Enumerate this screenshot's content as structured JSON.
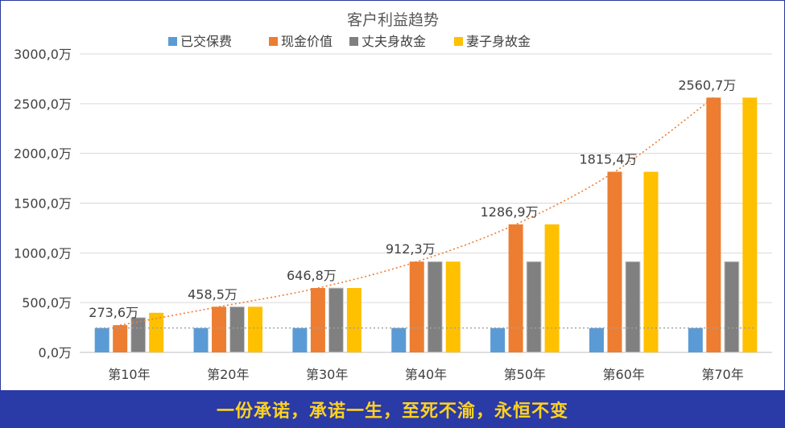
{
  "chart_data": {
    "type": "bar",
    "title": "客户利益趋势",
    "categories": [
      "第10年",
      "第20年",
      "第30年",
      "第40年",
      "第50年",
      "第60年",
      "第70年"
    ],
    "series": [
      {
        "name": "已交保费",
        "color": "#5b9bd5",
        "values": [
          245,
          245,
          245,
          245,
          245,
          245,
          245
        ]
      },
      {
        "name": "现金价值",
        "color": "#ed7d31",
        "values": [
          273.6,
          458.5,
          646.8,
          912.3,
          1286.9,
          1815.4,
          2560.7
        ]
      },
      {
        "name": "丈夫身故金",
        "color": "#808080",
        "values": [
          350,
          458.5,
          646.8,
          912.3,
          912.3,
          912.3,
          912.3
        ]
      },
      {
        "name": "妻子身故金",
        "color": "#ffc000",
        "values": [
          398,
          458.5,
          646.8,
          912.3,
          1286.9,
          1815.4,
          2560.7
        ]
      }
    ],
    "data_labels": [
      "273,6万",
      "458,5万",
      "646,8万",
      "912,3万",
      "1286,9万",
      "1815,4万",
      "2560,7万"
    ],
    "y_ticks": [
      "0,0万",
      "500,0万",
      "1000,0万",
      "1500,0万",
      "2000,0万",
      "2500,0万",
      "3000,0万"
    ],
    "ylim": [
      0,
      3000
    ],
    "grid": true,
    "legend": "top",
    "trendline": {
      "series": "现金价值",
      "style": "dotted",
      "color": "#ed7d31"
    },
    "reference_line": {
      "value": 245,
      "style": "dotted",
      "color": "#a0a0a0"
    }
  },
  "banner": {
    "text": "一份承诺，承诺一生，至死不渝，永恒不变"
  }
}
